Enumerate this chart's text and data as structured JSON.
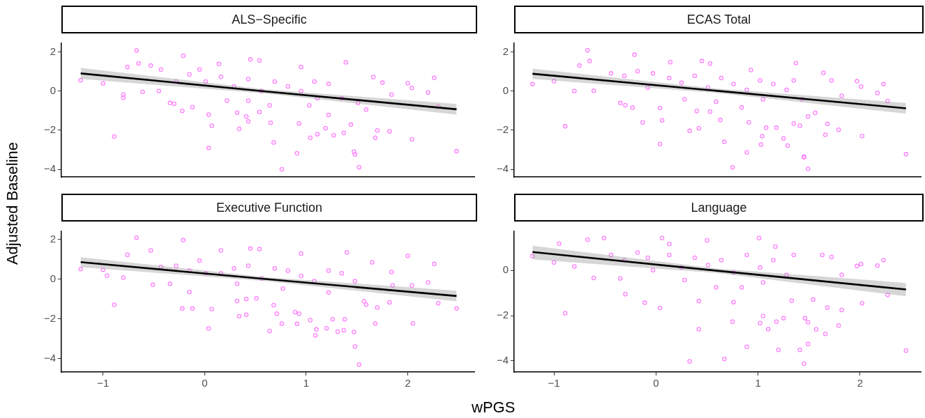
{
  "chart_data": [
    {
      "type": "scatter",
      "title": "ALS−Specific",
      "ylabel": "Adjusted Baseline",
      "xlim": [
        -1.41,
        2.66
      ],
      "xticks": [
        -1,
        0,
        1,
        2
      ],
      "ylim": [
        -4.38,
        2.44
      ],
      "yticks": [
        -4,
        -2,
        0,
        2
      ],
      "tick_labels": "y",
      "series": [
        {
          "marker": "circle",
          "color": "#ff80ff",
          "x": [
            -1.22,
            -0.67,
            -0.21,
            -0.89,
            -1.0,
            -0.8,
            -0.8,
            -0.76,
            -0.65,
            -0.53,
            -0.61,
            -0.45,
            -0.34,
            -0.3,
            -0.22,
            -0.12,
            0.04,
            0.07,
            0.04,
            0.14,
            0.34,
            0.45,
            0.54,
            0.32,
            0.41,
            0.43,
            0.54,
            0.65,
            0.68,
            0.76,
            0.91,
            0.95,
            0.93,
            1.04,
            1.11,
            1.19,
            1.27,
            1.37,
            1.39,
            1.47,
            1.48,
            1.52,
            1.44,
            1.59,
            1.66,
            1.7,
            1.68,
            1.82,
            1.84,
            1.75,
            2.0,
            2.04,
            2.04,
            2.2,
            2.26,
            2.3,
            2.48,
            0.16,
            0.29,
            0.43,
            0.56,
            0.69,
            0.82,
            0.95,
            1.08,
            1.22,
            1.35,
            1.51,
            -0.05,
            0.01,
            -0.15,
            -0.28,
            -0.43,
            1.03,
            1.22,
            0.64,
            0.43,
            0.22,
            1.11
          ],
          "values": [
            0.55,
            2.07,
            1.8,
            -2.32,
            0.39,
            -0.18,
            -0.34,
            1.22,
            1.41,
            1.3,
            -0.04,
            0,
            -0.61,
            -0.65,
            -1.01,
            -0.82,
            -1.2,
            -1.77,
            -2.9,
            1.38,
            -1.93,
            1.61,
            1.56,
            -1.1,
            -1.3,
            -1.55,
            -1.07,
            -1.62,
            -2.62,
            -3.99,
            -3.17,
            1.22,
            -1.65,
            -2.38,
            -2.2,
            -1.89,
            -2.26,
            -2.13,
            1.46,
            -3.09,
            -3.23,
            -3.88,
            -1.71,
            -0.94,
            0.71,
            -2.01,
            -2.38,
            -2.05,
            -0.18,
            0.43,
            0.4,
            0.16,
            -2.46,
            -0.07,
            0.67,
            -0.79,
            -3.07,
            0.73,
            0.24,
            0.61,
            0,
            0.49,
            0.24,
            0,
            0.49,
            0.37,
            -0.37,
            -0.61,
            1.1,
            0.49,
            0.85,
            0.49,
            1.1,
            -0.73,
            -1.22,
            -0.73,
            -0.49,
            -0.49,
            -0.37
          ]
        },
        {
          "type": "line",
          "marker": "none",
          "color": "#000000",
          "x": [
            -1.22,
            0.6,
            2.48
          ],
          "values": [
            0.9,
            -0.02,
            -0.93
          ],
          "lower": [
            0.62,
            -0.13,
            -1.2
          ],
          "upper": [
            1.18,
            0.09,
            -0.66
          ]
        }
      ]
    },
    {
      "type": "scatter",
      "title": "ECAS Total",
      "xlim": [
        -1.39,
        2.6
      ],
      "xticks": [
        -1,
        0,
        1,
        2
      ],
      "ylim": [
        -4.38,
        2.44
      ],
      "yticks": [
        -4,
        -2,
        0,
        2
      ],
      "tick_labels": "y",
      "series": [
        {
          "marker": "circle",
          "color": "#ff80ff",
          "x": [
            -1.21,
            -0.67,
            -0.21,
            -0.89,
            -1.0,
            -0.8,
            -0.75,
            -0.65,
            -0.61,
            -0.35,
            -0.3,
            -0.23,
            -0.13,
            0.04,
            0.06,
            0.04,
            0.14,
            0.33,
            0.42,
            0.45,
            0.53,
            0.4,
            0.53,
            0.63,
            0.67,
            0.75,
            0.89,
            0.93,
            0.91,
            1.03,
            1.04,
            1.08,
            1.18,
            1.25,
            1.29,
            1.37,
            1.35,
            1.41,
            1.45,
            1.45,
            1.49,
            1.49,
            1.56,
            1.64,
            1.68,
            1.66,
            1.79,
            1.82,
            1.72,
            1.97,
            2.01,
            2.02,
            2.17,
            2.23,
            2.27,
            2.45,
            0.13,
            0.25,
            0.38,
            0.51,
            0.64,
            0.76,
            0.89,
            1.02,
            1.15,
            1.28,
            1.35,
            1.43,
            -0.08,
            -0.03,
            -0.18,
            -0.31,
            -0.44,
            1.05,
            0.84,
            0.59,
            0.28
          ],
          "values": [
            0.35,
            2.08,
            1.85,
            -1.8,
            0.5,
            0,
            1.3,
            1.53,
            0.02,
            -0.61,
            -0.72,
            -0.85,
            -1.6,
            -0.86,
            -1.49,
            -2.7,
            1.47,
            -2.03,
            -1.89,
            1.53,
            1.4,
            -1.01,
            -1.05,
            -1.48,
            -2.59,
            -3.89,
            -3.13,
            1.07,
            -1.59,
            -2.73,
            -2.3,
            -1.87,
            -1.87,
            -2.42,
            -2.78,
            1.43,
            -1.65,
            -1.77,
            -3.34,
            -3.38,
            -3.96,
            -1.3,
            -1.11,
            0.92,
            -1.67,
            -2.23,
            -1.97,
            -0.24,
            0.54,
            0.5,
            0.23,
            -2.29,
            -0.1,
            0.35,
            -0.51,
            -3.22,
            0.66,
            0.42,
            0.78,
            0.18,
            0.66,
            0.36,
            0.06,
            0.54,
            0.36,
            0.06,
            0.54,
            -0.42,
            0.18,
            0.9,
            1.01,
            0.78,
            0.9,
            -0.42,
            -0.84,
            -0.54,
            -0.42
          ]
        },
        {
          "type": "line",
          "marker": "none",
          "color": "#000000",
          "x": [
            -1.21,
            0.6,
            2.45
          ],
          "values": [
            0.88,
            0.01,
            -0.88
          ],
          "lower": [
            0.62,
            -0.1,
            -1.15
          ],
          "upper": [
            1.14,
            0.12,
            -0.61
          ]
        }
      ]
    },
    {
      "type": "scatter",
      "title": "Executive Function",
      "xlabel": "wPGS",
      "xlim": [
        -1.41,
        2.66
      ],
      "xticks": [
        -1,
        0,
        1,
        2
      ],
      "ylim": [
        -4.67,
        2.4
      ],
      "yticks": [
        -4,
        -2,
        0,
        2
      ],
      "series": [
        {
          "marker": "circle",
          "color": "#ff80ff",
          "x": [
            -1.22,
            -0.67,
            -0.21,
            -0.89,
            -1.0,
            -0.96,
            -0.8,
            -0.76,
            -0.53,
            -0.51,
            -0.34,
            -0.22,
            -0.12,
            -0.15,
            0.04,
            0.07,
            0.16,
            0.34,
            0.41,
            0.45,
            0.54,
            0.32,
            0.41,
            0.51,
            0.64,
            0.68,
            0.71,
            0.76,
            0.91,
            0.89,
            0.93,
            0.95,
            1.04,
            1.09,
            1.1,
            1.2,
            1.26,
            1.31,
            1.37,
            1.38,
            1.47,
            1.48,
            1.52,
            1.4,
            1.59,
            1.57,
            1.65,
            1.68,
            1.7,
            1.82,
            1.85,
            1.84,
            2.0,
            2.04,
            2.05,
            2.2,
            2.26,
            2.3,
            2.48,
            0.16,
            0.29,
            0.43,
            0.56,
            0.69,
            0.82,
            0.95,
            1.08,
            1.22,
            1.35,
            1.48,
            -0.05,
            0.01,
            -0.15,
            -0.28,
            -0.43,
            0.32,
            0.77,
            1.22
          ],
          "values": [
            0.5,
            2.08,
            1.95,
            -1.29,
            0.47,
            0.17,
            0.07,
            1.22,
            1.44,
            -0.29,
            -0.23,
            -1.48,
            -1.48,
            -0.65,
            -2.48,
            -1.51,
            1.44,
            -1.87,
            -1.79,
            1.53,
            1.51,
            -1.1,
            -1.0,
            -0.97,
            -2.61,
            -1.31,
            -1.74,
            -2.24,
            -2.25,
            -1.66,
            -1.74,
            1.28,
            -2.06,
            -2.83,
            -2.53,
            -2.47,
            -2.02,
            -2.64,
            -2.57,
            -2.02,
            -2.66,
            -3.39,
            -4.29,
            1.34,
            -1.28,
            -1.12,
            0.84,
            -2.24,
            -1.43,
            -1.17,
            -0.32,
            0.35,
            1.17,
            -0.32,
            -2.23,
            -0.17,
            0.76,
            -1.21,
            -1.48,
            0.29,
            0.54,
            0.67,
            0.03,
            0.54,
            0.42,
            0.16,
            -0.1,
            0.42,
            0.29,
            -0.1,
            0.93,
            0.29,
            0.42,
            0.67,
            0.61,
            -0.23,
            -0.48,
            -0.67
          ]
        },
        {
          "type": "line",
          "marker": "none",
          "color": "#000000",
          "x": [
            -1.22,
            0.6,
            2.48
          ],
          "values": [
            0.85,
            0.0,
            -0.85
          ],
          "lower": [
            0.6,
            -0.1,
            -1.12
          ],
          "upper": [
            1.1,
            0.1,
            -0.58
          ]
        }
      ]
    },
    {
      "type": "scatter",
      "title": "Language",
      "xlim": [
        -1.39,
        2.6
      ],
      "xticks": [
        -1,
        0,
        1,
        2
      ],
      "ylim": [
        -4.5,
        1.74
      ],
      "yticks": [
        -4,
        -2,
        0
      ],
      "series": [
        {
          "marker": "circle",
          "color": "#ff80ff",
          "x": [
            -1.21,
            -0.95,
            -0.89,
            -1.0,
            -0.8,
            -0.67,
            -0.51,
            -0.61,
            -0.35,
            -0.3,
            -0.11,
            0.04,
            0.06,
            0.33,
            0.42,
            0.42,
            0.5,
            0.67,
            0.75,
            0.76,
            0.89,
            1.01,
            1.02,
            1.05,
            1.1,
            1.18,
            1.2,
            1.25,
            1.33,
            1.41,
            1.45,
            1.49,
            1.46,
            1.57,
            1.49,
            1.54,
            1.66,
            1.68,
            1.79,
            1.82,
            1.82,
            1.72,
            1.97,
            2.01,
            2.02,
            2.17,
            2.23,
            2.27,
            2.45,
            1.63,
            0.13,
            0.25,
            0.38,
            0.51,
            0.64,
            0.76,
            0.89,
            1.02,
            1.15,
            1.28,
            1.35,
            1.17,
            -0.08,
            -0.03,
            -0.18,
            -0.31,
            -0.44,
            1.05,
            0.84,
            0.59,
            0.28,
            0.13
          ],
          "values": [
            0.64,
            1.19,
            -1.89,
            0.36,
            0.18,
            1.37,
            1.44,
            -0.33,
            -0.35,
            -1.05,
            -1.43,
            -1.66,
            1.44,
            -4.03,
            -2.6,
            -1.36,
            1.34,
            -3.92,
            -2.27,
            -1.4,
            -3.38,
            1.44,
            -2.33,
            -2.02,
            -2.6,
            -2.27,
            -3.52,
            -2.11,
            -1.33,
            -3.52,
            -4.13,
            -3.26,
            -2.11,
            -2.61,
            -2.29,
            -1.29,
            -2.81,
            -1.64,
            -2.44,
            -1.75,
            -0.19,
            0.6,
            0.2,
            0.29,
            -1.45,
            0.22,
            0.46,
            -1.08,
            -3.55,
            0.69,
            0.69,
            0.13,
            0.57,
            0.24,
            0.46,
            -0.09,
            0.69,
            0.13,
            0.46,
            -0.2,
            0.69,
            1.06,
            0.57,
            0.02,
            0.8,
            0.46,
            0.69,
            -0.53,
            -0.75,
            -0.75,
            -0.42,
            1.18
          ]
        },
        {
          "type": "line",
          "marker": "none",
          "color": "#000000",
          "x": [
            -1.21,
            0.6,
            2.45
          ],
          "values": [
            0.82,
            -0.01,
            -0.84
          ],
          "lower": [
            0.5,
            -0.11,
            -1.14
          ],
          "upper": [
            1.1,
            0.09,
            -0.55
          ]
        }
      ]
    }
  ]
}
